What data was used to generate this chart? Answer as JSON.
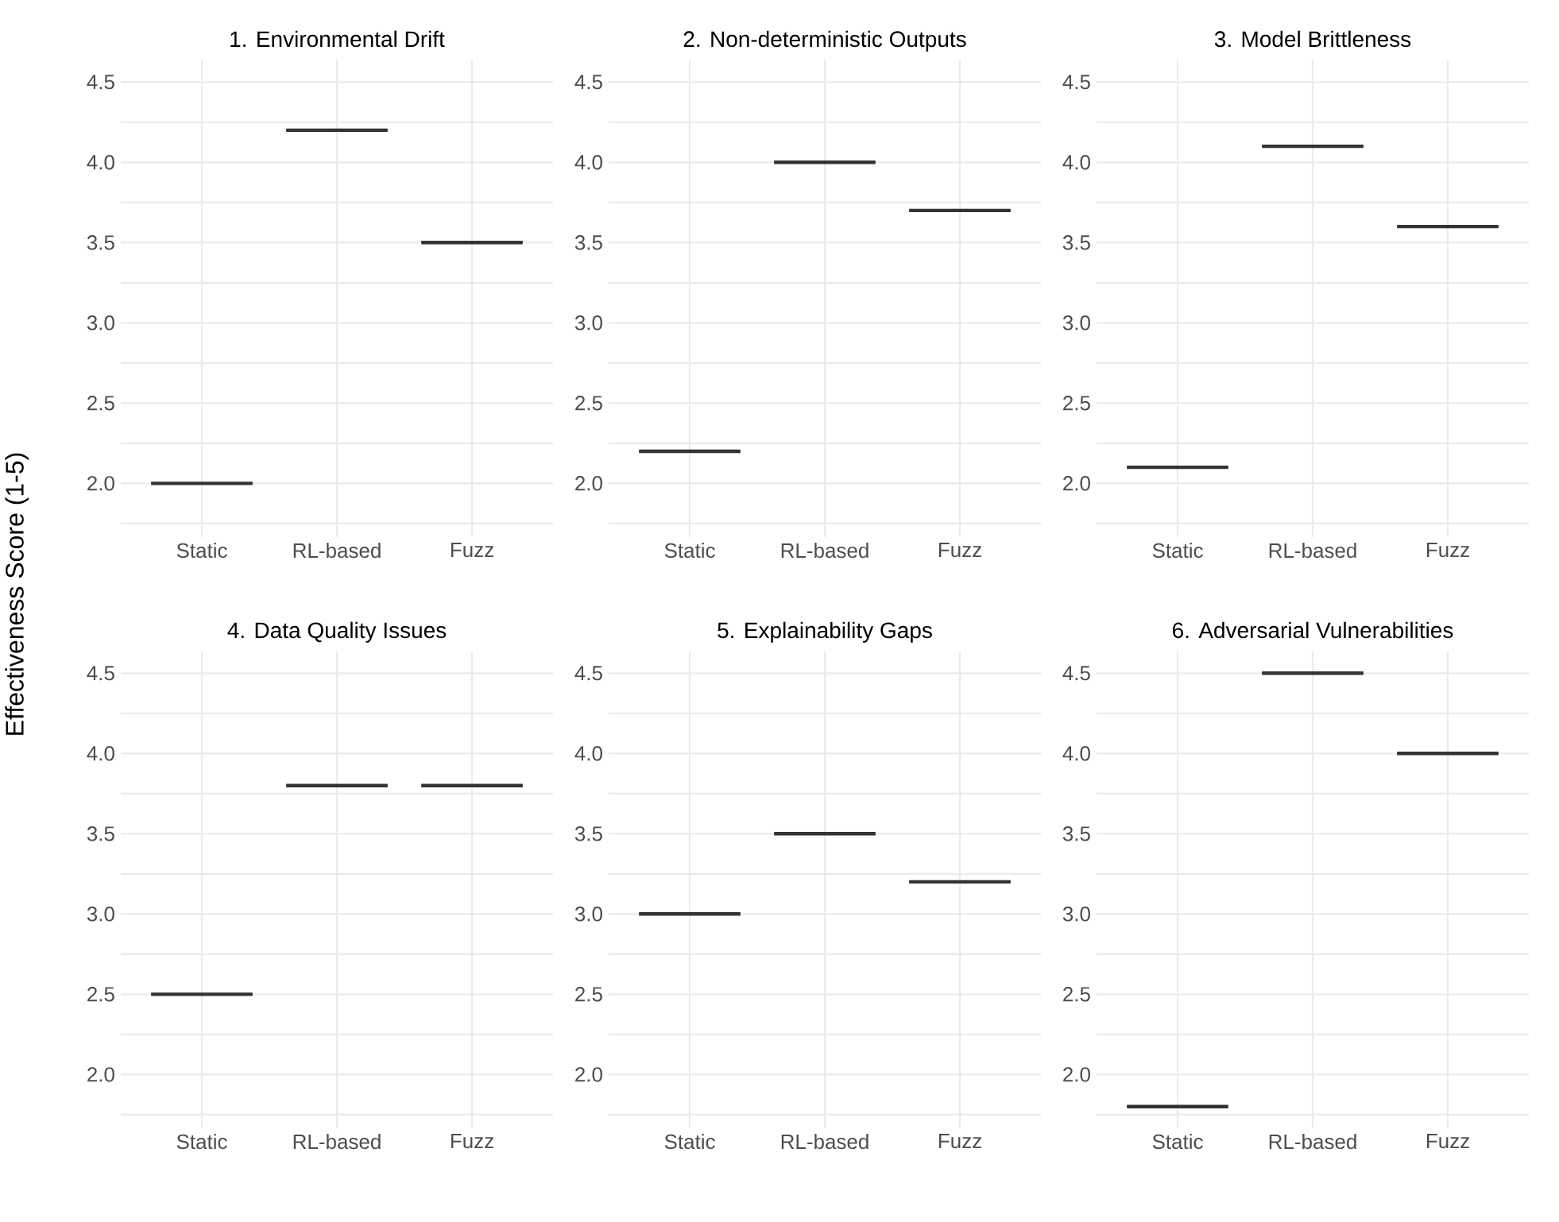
{
  "chart_data": [
    {
      "type": "box",
      "title": "1. Environmental Drift",
      "ylabel": "Effectiveness Score (1-5)",
      "categories": [
        "Static",
        "RL-based",
        "Fuzz"
      ],
      "series": [
        {
          "color": "#333333",
          "boxes": [
            {
              "low": 2.0,
              "q1": 2.0,
              "median": 2.0,
              "q3": 2.0,
              "high": 2.0
            },
            {
              "low": 4.2,
              "q1": 4.2,
              "median": 4.2,
              "q3": 4.2,
              "high": 4.2
            },
            {
              "low": 3.5,
              "q1": 3.5,
              "median": 3.5,
              "q3": 3.5,
              "high": 3.5
            }
          ]
        }
      ],
      "ylim": [
        1.665,
        4.635
      ],
      "yticks": [
        {
          "value": 1.75,
          "label": null
        },
        {
          "value": 2,
          "label": "2.0"
        },
        {
          "value": 2.25,
          "label": null
        },
        {
          "value": 2.5,
          "label": "2.5"
        },
        {
          "value": 2.75,
          "label": null
        },
        {
          "value": 3,
          "label": "3.0"
        },
        {
          "value": 3.25,
          "label": null
        },
        {
          "value": 3.5,
          "label": "3.5"
        },
        {
          "value": 3.75,
          "label": null
        },
        {
          "value": 4,
          "label": "4.0"
        },
        {
          "value": 4.25,
          "label": null
        },
        {
          "value": 4.5,
          "label": "4.5"
        }
      ],
      "grid": true
    },
    {
      "type": "box",
      "title": "2. Non-deterministic Outputs",
      "categories": [
        "Static",
        "RL-based",
        "Fuzz"
      ],
      "series": [
        {
          "color": "#333333",
          "boxes": [
            {
              "low": 2.2,
              "q1": 2.2,
              "median": 2.2,
              "q3": 2.2,
              "high": 2.2
            },
            {
              "low": 4.0,
              "q1": 4.0,
              "median": 4.0,
              "q3": 4.0,
              "high": 4.0
            },
            {
              "low": 3.7,
              "q1": 3.7,
              "median": 3.7,
              "q3": 3.7,
              "high": 3.7
            }
          ]
        }
      ],
      "ylim": [
        1.665,
        4.635
      ],
      "yticks": [
        {
          "value": 1.75,
          "label": null
        },
        {
          "value": 2,
          "label": "2.0"
        },
        {
          "value": 2.25,
          "label": null
        },
        {
          "value": 2.5,
          "label": "2.5"
        },
        {
          "value": 2.75,
          "label": null
        },
        {
          "value": 3,
          "label": "3.0"
        },
        {
          "value": 3.25,
          "label": null
        },
        {
          "value": 3.5,
          "label": "3.5"
        },
        {
          "value": 3.75,
          "label": null
        },
        {
          "value": 4,
          "label": "4.0"
        },
        {
          "value": 4.25,
          "label": null
        },
        {
          "value": 4.5,
          "label": "4.5"
        }
      ],
      "grid": true
    },
    {
      "type": "box",
      "title": "3. Model Brittleness",
      "categories": [
        "Static",
        "RL-based",
        "Fuzz"
      ],
      "series": [
        {
          "color": "#333333",
          "boxes": [
            {
              "low": 2.1,
              "q1": 2.1,
              "median": 2.1,
              "q3": 2.1,
              "high": 2.1
            },
            {
              "low": 4.1,
              "q1": 4.1,
              "median": 4.1,
              "q3": 4.1,
              "high": 4.1
            },
            {
              "low": 3.6,
              "q1": 3.6,
              "median": 3.6,
              "q3": 3.6,
              "high": 3.6
            }
          ]
        }
      ],
      "ylim": [
        1.665,
        4.635
      ],
      "yticks": [
        {
          "value": 1.75,
          "label": null
        },
        {
          "value": 2,
          "label": "2.0"
        },
        {
          "value": 2.25,
          "label": null
        },
        {
          "value": 2.5,
          "label": "2.5"
        },
        {
          "value": 2.75,
          "label": null
        },
        {
          "value": 3,
          "label": "3.0"
        },
        {
          "value": 3.25,
          "label": null
        },
        {
          "value": 3.5,
          "label": "3.5"
        },
        {
          "value": 3.75,
          "label": null
        },
        {
          "value": 4,
          "label": "4.0"
        },
        {
          "value": 4.25,
          "label": null
        },
        {
          "value": 4.5,
          "label": "4.5"
        }
      ],
      "grid": true
    },
    {
      "type": "box",
      "title": "4. Data Quality Issues",
      "categories": [
        "Static",
        "RL-based",
        "Fuzz"
      ],
      "series": [
        {
          "color": "#333333",
          "boxes": [
            {
              "low": 2.5,
              "q1": 2.5,
              "median": 2.5,
              "q3": 2.5,
              "high": 2.5
            },
            {
              "low": 3.8,
              "q1": 3.8,
              "median": 3.8,
              "q3": 3.8,
              "high": 3.8
            },
            {
              "low": 3.8,
              "q1": 3.8,
              "median": 3.8,
              "q3": 3.8,
              "high": 3.8
            }
          ]
        }
      ],
      "ylim": [
        1.665,
        4.635
      ],
      "yticks": [
        {
          "value": 1.75,
          "label": null
        },
        {
          "value": 2,
          "label": "2.0"
        },
        {
          "value": 2.25,
          "label": null
        },
        {
          "value": 2.5,
          "label": "2.5"
        },
        {
          "value": 2.75,
          "label": null
        },
        {
          "value": 3,
          "label": "3.0"
        },
        {
          "value": 3.25,
          "label": null
        },
        {
          "value": 3.5,
          "label": "3.5"
        },
        {
          "value": 3.75,
          "label": null
        },
        {
          "value": 4,
          "label": "4.0"
        },
        {
          "value": 4.25,
          "label": null
        },
        {
          "value": 4.5,
          "label": "4.5"
        }
      ],
      "grid": true
    },
    {
      "type": "box",
      "title": "5. Explainability Gaps",
      "categories": [
        "Static",
        "RL-based",
        "Fuzz"
      ],
      "series": [
        {
          "color": "#333333",
          "boxes": [
            {
              "low": 3.0,
              "q1": 3.0,
              "median": 3.0,
              "q3": 3.0,
              "high": 3.0
            },
            {
              "low": 3.5,
              "q1": 3.5,
              "median": 3.5,
              "q3": 3.5,
              "high": 3.5
            },
            {
              "low": 3.2,
              "q1": 3.2,
              "median": 3.2,
              "q3": 3.2,
              "high": 3.2
            }
          ]
        }
      ],
      "ylim": [
        1.665,
        4.635
      ],
      "yticks": [
        {
          "value": 1.75,
          "label": null
        },
        {
          "value": 2,
          "label": "2.0"
        },
        {
          "value": 2.25,
          "label": null
        },
        {
          "value": 2.5,
          "label": "2.5"
        },
        {
          "value": 2.75,
          "label": null
        },
        {
          "value": 3,
          "label": "3.0"
        },
        {
          "value": 3.25,
          "label": null
        },
        {
          "value": 3.5,
          "label": "3.5"
        },
        {
          "value": 3.75,
          "label": null
        },
        {
          "value": 4,
          "label": "4.0"
        },
        {
          "value": 4.25,
          "label": null
        },
        {
          "value": 4.5,
          "label": "4.5"
        }
      ],
      "grid": true
    },
    {
      "type": "box",
      "title": "6. Adversarial Vulnerabilities",
      "categories": [
        "Static",
        "RL-based",
        "Fuzz"
      ],
      "series": [
        {
          "color": "#333333",
          "boxes": [
            {
              "low": 1.8,
              "q1": 1.8,
              "median": 1.8,
              "q3": 1.8,
              "high": 1.8
            },
            {
              "low": 4.5,
              "q1": 4.5,
              "median": 4.5,
              "q3": 4.5,
              "high": 4.5
            },
            {
              "low": 4.0,
              "q1": 4.0,
              "median": 4.0,
              "q3": 4.0,
              "high": 4.0
            }
          ]
        }
      ],
      "ylim": [
        1.665,
        4.635
      ],
      "yticks": [
        {
          "value": 1.75,
          "label": null
        },
        {
          "value": 2,
          "label": "2.0"
        },
        {
          "value": 2.25,
          "label": null
        },
        {
          "value": 2.5,
          "label": "2.5"
        },
        {
          "value": 2.75,
          "label": null
        },
        {
          "value": 3,
          "label": "3.0"
        },
        {
          "value": 3.25,
          "label": null
        },
        {
          "value": 3.5,
          "label": "3.5"
        },
        {
          "value": 3.75,
          "label": null
        },
        {
          "value": 4,
          "label": "4.0"
        },
        {
          "value": 4.25,
          "label": null
        },
        {
          "value": 4.5,
          "label": "4.5"
        }
      ],
      "grid": true
    }
  ]
}
